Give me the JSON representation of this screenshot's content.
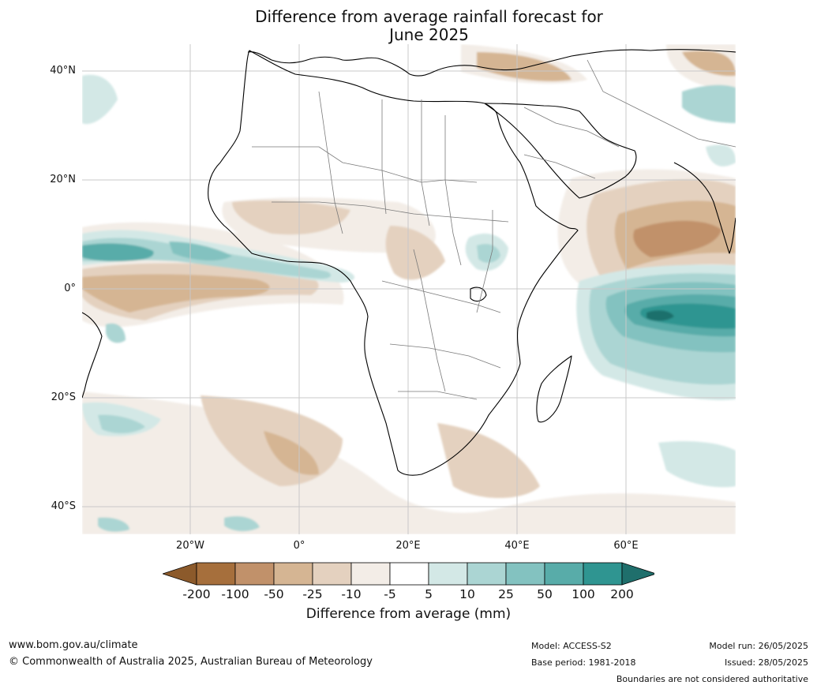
{
  "title_line1": "Difference from average rainfall forecast for",
  "title_line2": "June 2025",
  "map": {
    "lat_labels": [
      "40°N",
      "20°N",
      "0°",
      "20°S",
      "40°S"
    ],
    "lon_labels": [
      "20°W",
      "0°",
      "20°E",
      "40°E",
      "60°E"
    ],
    "grid": true
  },
  "colorbar": {
    "title": "Difference from average (mm)",
    "ticks": [
      "-200",
      "-100",
      "-50",
      "-25",
      "-10",
      "-5",
      "5",
      "10",
      "25",
      "50",
      "100",
      "200"
    ],
    "colors": [
      "#8c5a2b",
      "#a66f3c",
      "#c1916a",
      "#d5b593",
      "#e4d1bf",
      "#f3ede7",
      "#ffffff",
      "#d3e8e6",
      "#abd5d3",
      "#83c2c0",
      "#58aca9",
      "#2f9591",
      "#1f6f6c"
    ]
  },
  "footer": {
    "website": "www.bom.gov.au/climate",
    "copyright": "© Commonwealth of Australia 2025, Australian Bureau of Meteorology",
    "model": "Model: ACCESS-S2",
    "base_period": "Base period: 1981-2018",
    "model_run": "Model run: 26/05/2025",
    "issued": "Issued: 28/05/2025",
    "disclaimer": "Boundaries are not considered authoritative"
  }
}
